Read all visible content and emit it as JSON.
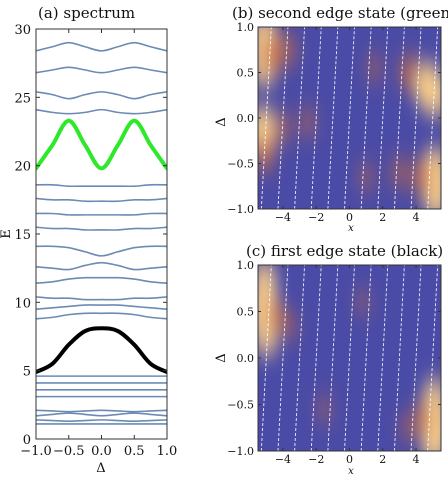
{
  "colors": {
    "band": "#6b8bb5",
    "green_band": "#2ee82a",
    "black_band": "#000000",
    "heat_low": "#4a4ba6",
    "heat_mid": "#c96a43",
    "heat_high": "#f7cc8a",
    "stripe": "#ffffff"
  },
  "chart_data": [
    {
      "id": "a",
      "type": "line",
      "title": "(a) spectrum",
      "xlabel": "Δ",
      "ylabel": "E",
      "xlim": [
        -1.0,
        1.0
      ],
      "ylim": [
        0,
        30
      ],
      "xticks": [
        "−1.0",
        "−0.5",
        "0.0",
        "0.5",
        "1.0"
      ],
      "xtick_values": [
        -1.0,
        -0.5,
        0.0,
        0.5,
        1.0
      ],
      "yticks": [
        "0",
        "5",
        "10",
        "15",
        "20",
        "25",
        "30"
      ],
      "ytick_values": [
        0,
        5,
        10,
        15,
        20,
        25,
        30
      ],
      "x": [
        -1.0,
        -0.75,
        -0.5,
        -0.25,
        0.0,
        0.25,
        0.5,
        0.75,
        1.0
      ],
      "series": [
        {
          "values": [
            1.1,
            1.1,
            1.1,
            1.1,
            1.1,
            1.1,
            1.1,
            1.1,
            1.1
          ],
          "color": "band"
        },
        {
          "values": [
            1.4,
            1.35,
            1.3,
            1.35,
            1.4,
            1.35,
            1.3,
            1.35,
            1.4
          ],
          "color": "band"
        },
        {
          "values": [
            1.7,
            1.8,
            1.9,
            1.8,
            1.7,
            1.8,
            1.9,
            1.8,
            1.7
          ],
          "color": "band"
        },
        {
          "values": [
            2.1,
            2.05,
            2.0,
            2.05,
            2.1,
            2.05,
            2.0,
            2.05,
            2.1
          ],
          "color": "band"
        },
        {
          "values": [
            3.1,
            3.1,
            3.1,
            3.1,
            3.1,
            3.1,
            3.1,
            3.1,
            3.1
          ],
          "color": "band"
        },
        {
          "values": [
            3.6,
            3.6,
            3.6,
            3.6,
            3.6,
            3.6,
            3.6,
            3.6,
            3.6
          ],
          "color": "band"
        },
        {
          "values": [
            4.1,
            4.1,
            4.1,
            4.1,
            4.1,
            4.1,
            4.1,
            4.1,
            4.1
          ],
          "color": "band"
        },
        {
          "values": [
            4.6,
            4.6,
            4.6,
            4.6,
            4.6,
            4.6,
            4.6,
            4.6,
            4.6
          ],
          "color": "band"
        },
        {
          "values": [
            4.9,
            5.5,
            6.9,
            7.9,
            8.1,
            7.9,
            6.9,
            5.5,
            4.9
          ],
          "color": "black_band",
          "width": 4
        },
        {
          "values": [
            8.8,
            8.9,
            9.1,
            9.2,
            9.2,
            9.2,
            9.1,
            8.9,
            8.8
          ],
          "color": "band"
        },
        {
          "values": [
            9.5,
            9.6,
            9.7,
            9.8,
            9.8,
            9.8,
            9.7,
            9.6,
            9.5
          ],
          "color": "band"
        },
        {
          "values": [
            10.4,
            10.3,
            10.3,
            10.2,
            10.2,
            10.2,
            10.3,
            10.3,
            10.4
          ],
          "color": "band"
        },
        {
          "values": [
            11.4,
            11.5,
            11.7,
            11.8,
            11.8,
            11.8,
            11.7,
            11.5,
            11.4
          ],
          "color": "band"
        },
        {
          "values": [
            12.6,
            12.5,
            12.4,
            12.7,
            12.9,
            12.7,
            12.4,
            12.5,
            12.6
          ],
          "color": "band"
        },
        {
          "values": [
            14.1,
            14.1,
            14.0,
            13.7,
            13.4,
            13.7,
            14.0,
            14.1,
            14.1
          ],
          "color": "band"
        },
        {
          "values": [
            15.5,
            15.4,
            15.4,
            15.3,
            15.3,
            15.3,
            15.4,
            15.4,
            15.5
          ],
          "color": "band"
        },
        {
          "values": [
            16.5,
            16.5,
            16.4,
            16.4,
            16.4,
            16.4,
            16.4,
            16.5,
            16.5
          ],
          "color": "band"
        },
        {
          "values": [
            17.6,
            17.5,
            17.5,
            17.4,
            17.4,
            17.4,
            17.5,
            17.5,
            17.6
          ],
          "color": "band"
        },
        {
          "values": [
            18.6,
            18.6,
            18.5,
            18.5,
            18.5,
            18.5,
            18.5,
            18.6,
            18.6
          ],
          "color": "band"
        },
        {
          "values": [
            19.8,
            21.5,
            23.3,
            21.5,
            19.8,
            21.5,
            23.3,
            21.5,
            19.8
          ],
          "color": "green_band",
          "width": 4
        },
        {
          "values": [
            24.1,
            23.9,
            23.8,
            23.9,
            24.1,
            23.9,
            23.8,
            23.9,
            24.1
          ],
          "color": "band"
        },
        {
          "values": [
            25.4,
            25.2,
            24.9,
            25.2,
            25.4,
            25.2,
            24.9,
            25.2,
            25.4
          ],
          "color": "band"
        },
        {
          "values": [
            26.8,
            27.0,
            27.2,
            27.0,
            26.8,
            27.0,
            27.2,
            27.0,
            26.8
          ],
          "color": "band"
        },
        {
          "values": [
            28.4,
            28.7,
            29.0,
            28.7,
            28.4,
            28.7,
            29.0,
            28.7,
            28.4
          ],
          "color": "band"
        }
      ]
    },
    {
      "id": "b",
      "type": "heatmap",
      "title": "(b) second edge state (green)",
      "xlabel": "x",
      "ylabel": "Δ",
      "xlim": [
        -5.5,
        5.5
      ],
      "ylim": [
        -1.0,
        1.0
      ],
      "xticks": [
        "−4",
        "−2",
        "0",
        "2",
        "4"
      ],
      "xtick_values": [
        -4,
        -2,
        0,
        2,
        4
      ],
      "yticks": [
        "−1.0",
        "−0.5",
        "0.0",
        "0.5",
        "1.0"
      ],
      "ytick_values": [
        -1.0,
        -0.5,
        0.0,
        0.5,
        1.0
      ],
      "blobs": [
        {
          "x": -5.1,
          "y": 0.85,
          "amp": 0.9
        },
        {
          "x": -5.1,
          "y": 0.6,
          "amp": 0.8
        },
        {
          "x": -4.6,
          "y": 0.7,
          "amp": 0.5
        },
        {
          "x": -3.7,
          "y": 0.75,
          "amp": 0.35
        },
        {
          "x": -5.2,
          "y": -0.15,
          "amp": 0.9
        },
        {
          "x": -5.1,
          "y": -0.4,
          "amp": 0.45
        },
        {
          "x": -4.0,
          "y": -0.1,
          "amp": 0.3
        },
        {
          "x": -2.5,
          "y": -0.05,
          "amp": 0.25
        },
        {
          "x": 3.6,
          "y": 0.5,
          "amp": 0.5
        },
        {
          "x": 4.7,
          "y": 0.35,
          "amp": 0.85
        },
        {
          "x": 5.2,
          "y": 0.25,
          "amp": 0.7
        },
        {
          "x": 1.5,
          "y": 0.55,
          "amp": 0.2
        },
        {
          "x": 5.1,
          "y": -0.6,
          "amp": 0.9
        },
        {
          "x": 5.2,
          "y": -0.85,
          "amp": 0.8
        },
        {
          "x": 4.3,
          "y": -0.65,
          "amp": 0.45
        },
        {
          "x": 3.0,
          "y": -0.6,
          "amp": 0.3
        },
        {
          "x": 1.0,
          "y": -0.65,
          "amp": 0.2
        }
      ]
    },
    {
      "id": "c",
      "type": "heatmap",
      "title": "(c) first edge state (black)",
      "xlabel": "x",
      "ylabel": "Δ",
      "xlim": [
        -5.5,
        5.5
      ],
      "ylim": [
        -1.0,
        1.0
      ],
      "xticks": [
        "−4",
        "−2",
        "0",
        "2",
        "4"
      ],
      "xtick_values": [
        -4,
        -2,
        0,
        2,
        4
      ],
      "yticks": [
        "−1.0",
        "−0.5",
        "0.0",
        "0.5",
        "1.0"
      ],
      "ytick_values": [
        -1.0,
        -0.5,
        0.0,
        0.5,
        1.0
      ],
      "blobs": [
        {
          "x": -5.1,
          "y": 0.8,
          "amp": 0.75
        },
        {
          "x": -5.1,
          "y": 0.5,
          "amp": 1.0
        },
        {
          "x": -5.0,
          "y": 0.25,
          "amp": 0.7
        },
        {
          "x": -4.4,
          "y": 0.45,
          "amp": 0.35
        },
        {
          "x": -3.6,
          "y": 0.35,
          "amp": 0.2
        },
        {
          "x": 5.1,
          "y": -0.45,
          "amp": 0.7
        },
        {
          "x": 5.1,
          "y": -0.7,
          "amp": 1.0
        },
        {
          "x": 5.1,
          "y": -0.9,
          "amp": 0.8
        },
        {
          "x": 4.4,
          "y": -0.65,
          "amp": 0.35
        },
        {
          "x": 3.5,
          "y": -0.75,
          "amp": 0.2
        },
        {
          "x": -1.5,
          "y": -0.55,
          "amp": 0.15
        },
        {
          "x": 0.8,
          "y": 0.6,
          "amp": 0.12
        }
      ]
    }
  ]
}
